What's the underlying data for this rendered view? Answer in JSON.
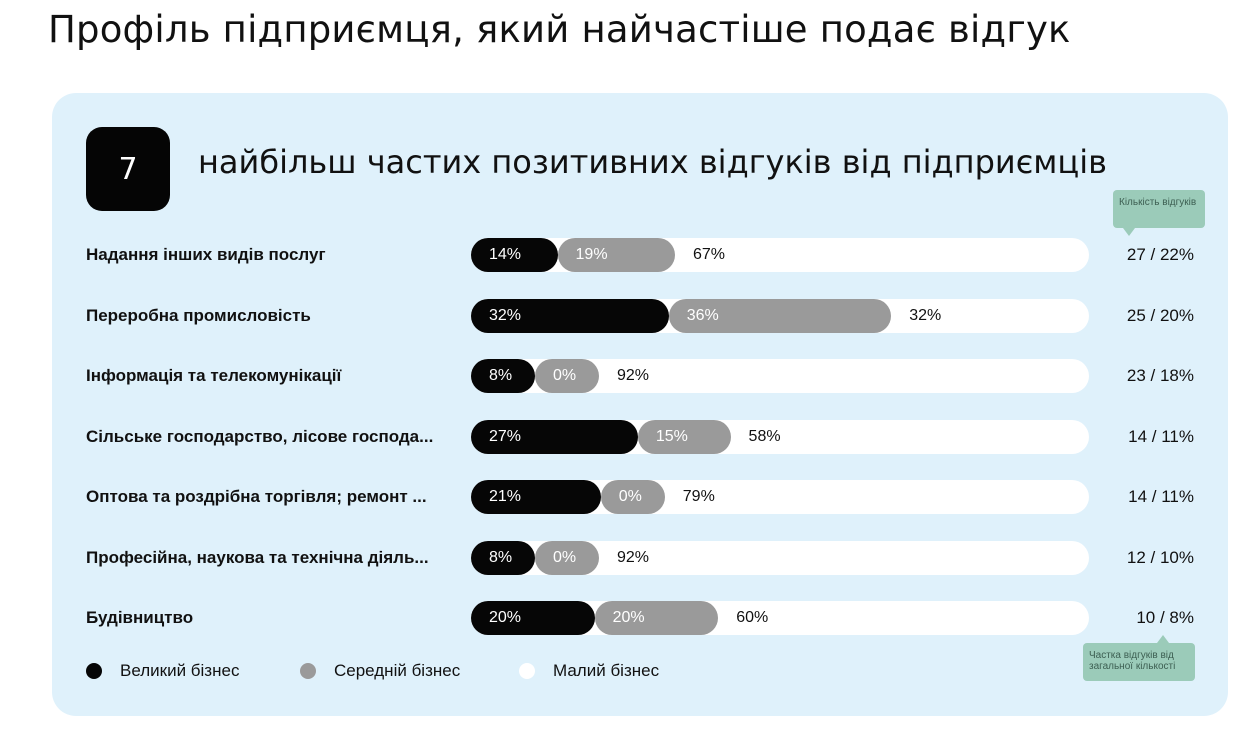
{
  "page_title": "Профіль підприємця, який найчастіше подає відгук",
  "panel": {
    "count": "7",
    "heading": "найбільш частих позитивних відгуків від підприємців",
    "note_top": "Кількість відгуків",
    "note_bottom": "Частка відгуків від загальної кількості"
  },
  "colors": {
    "large": "#060606",
    "medium": "#9a9a9a",
    "small": "#ffffff",
    "panel": "#dff1fb",
    "note": "#9bcbb9"
  },
  "chart_data": {
    "type": "bar",
    "stacked": true,
    "orientation": "horizontal",
    "categories": [
      "Надання інших видів послуг",
      "Переробна промисловість",
      "Інформація та телекомунікації",
      "Сільське господарство, лісове господа...",
      "Оптова та роздрібна торгівля; ремонт ...",
      "Професійна, наукова та технічна діяль...",
      "Будівництво"
    ],
    "series": [
      {
        "name": "Великий бізнес",
        "color": "#060606",
        "values": [
          14,
          32,
          8,
          27,
          21,
          8,
          20
        ],
        "labels": [
          "14%",
          "32%",
          "8%",
          "27%",
          "21%",
          "8%",
          "20%"
        ]
      },
      {
        "name": "Середній бізнес",
        "color": "#9a9a9a",
        "values": [
          19,
          36,
          0,
          15,
          0,
          0,
          20
        ],
        "labels": [
          "19%",
          "36%",
          "0%",
          "15%",
          "0%",
          "0%",
          "20%"
        ]
      },
      {
        "name": "Малий бізнес",
        "color": "#ffffff",
        "values": [
          67,
          32,
          92,
          58,
          79,
          92,
          60
        ],
        "labels": [
          "67%",
          "32%",
          "92%",
          "58%",
          "79%",
          "92%",
          "60%"
        ]
      }
    ],
    "counts": [
      "27 / 22%",
      "25 / 20%",
      "23 / 18%",
      "14 / 11%",
      "14 / 11%",
      "12 / 10%",
      "10 / 8%"
    ],
    "xlim": [
      0,
      100
    ],
    "legend_position": "bottom-left"
  }
}
